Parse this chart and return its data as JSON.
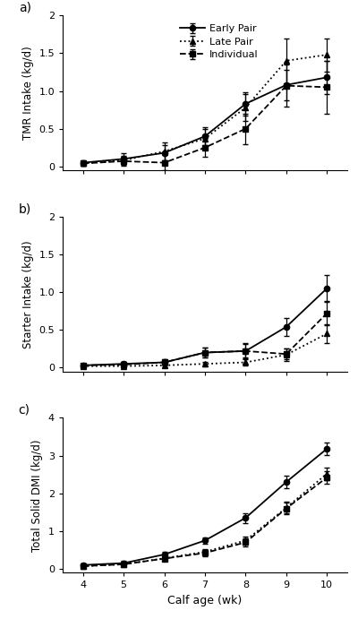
{
  "weeks": [
    4,
    5,
    6,
    7,
    8,
    9,
    10
  ],
  "panel_a": {
    "title": "a)",
    "ylabel": "TMR Intake (kg/d)",
    "ylim": [
      -0.05,
      2.0
    ],
    "yticks": [
      0,
      0.5,
      1.0,
      1.5,
      2.0
    ],
    "early_pair": [
      0.05,
      0.1,
      0.18,
      0.4,
      0.83,
      1.08,
      1.18
    ],
    "early_pair_se": [
      0.03,
      0.07,
      0.1,
      0.12,
      0.15,
      0.2,
      0.22
    ],
    "late_pair": [
      0.04,
      0.08,
      0.2,
      0.37,
      0.78,
      1.4,
      1.48
    ],
    "late_pair_se": [
      0.03,
      0.06,
      0.12,
      0.13,
      0.18,
      0.3,
      0.22
    ],
    "individual": [
      0.04,
      0.07,
      0.05,
      0.25,
      0.5,
      1.07,
      1.05
    ],
    "individual_se": [
      0.03,
      0.06,
      0.1,
      0.12,
      0.2,
      0.28,
      0.35
    ]
  },
  "panel_b": {
    "title": "b)",
    "ylabel": "Starter Intake (kg/d)",
    "ylim": [
      -0.05,
      2.0
    ],
    "yticks": [
      0,
      0.5,
      1.0,
      1.5,
      2.0
    ],
    "early_pair": [
      0.03,
      0.05,
      0.07,
      0.2,
      0.22,
      0.54,
      1.05
    ],
    "early_pair_se": [
      0.02,
      0.02,
      0.03,
      0.07,
      0.1,
      0.12,
      0.18
    ],
    "late_pair": [
      0.02,
      0.02,
      0.03,
      0.05,
      0.07,
      0.17,
      0.45
    ],
    "late_pair_se": [
      0.01,
      0.01,
      0.02,
      0.03,
      0.04,
      0.08,
      0.13
    ],
    "individual": [
      0.03,
      0.04,
      0.07,
      0.2,
      0.22,
      0.18,
      0.72
    ],
    "individual_se": [
      0.02,
      0.03,
      0.04,
      0.07,
      0.09,
      0.07,
      0.16
    ]
  },
  "panel_c": {
    "title": "c)",
    "ylabel": "Total Solid DMI (kg/d)",
    "ylim": [
      -0.1,
      4.0
    ],
    "yticks": [
      0,
      1,
      2,
      3,
      4
    ],
    "early_pair": [
      0.1,
      0.15,
      0.38,
      0.75,
      1.35,
      2.3,
      3.18
    ],
    "early_pair_se": [
      0.04,
      0.06,
      0.07,
      0.09,
      0.13,
      0.16,
      0.16
    ],
    "late_pair": [
      0.07,
      0.12,
      0.28,
      0.45,
      0.75,
      1.62,
      2.52
    ],
    "late_pair_se": [
      0.03,
      0.05,
      0.06,
      0.08,
      0.11,
      0.16,
      0.16
    ],
    "individual": [
      0.07,
      0.12,
      0.27,
      0.42,
      0.7,
      1.6,
      2.42
    ],
    "individual_se": [
      0.03,
      0.05,
      0.06,
      0.08,
      0.11,
      0.16,
      0.16
    ]
  },
  "legend": {
    "early_pair_label": "Early Pair",
    "late_pair_label": "Late Pair",
    "individual_label": "Individual"
  },
  "colors": {
    "early_pair": "#000000",
    "late_pair": "#000000",
    "individual": "#000000"
  },
  "linestyles": {
    "early_pair": "-",
    "late_pair": ":",
    "individual": "--"
  },
  "markers": {
    "early_pair": "o",
    "late_pair": "^",
    "individual": "s"
  },
  "marker_fill": {
    "early_pair": "#000000",
    "late_pair": "#000000",
    "individual": "#000000"
  },
  "xlabel": "Calf age (wk)",
  "background_color": "#ffffff"
}
